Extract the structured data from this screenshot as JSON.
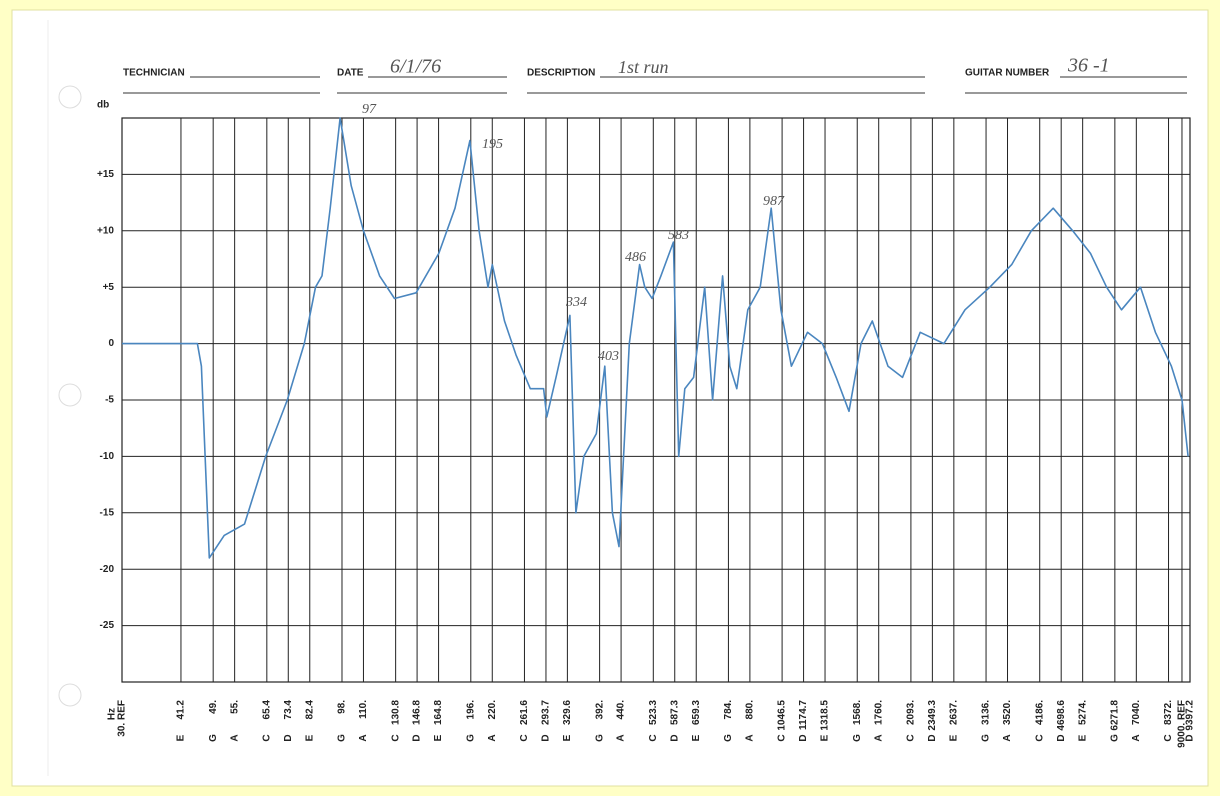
{
  "header": {
    "technician_label": "TECHNICIAN",
    "date_label": "DATE",
    "date_value": "6/1/76",
    "description_label": "DESCRIPTION",
    "description_value": "1st run",
    "guitar_number_label": "GUITAR NUMBER",
    "guitar_number_value": "36 -1"
  },
  "chart_data": {
    "type": "line",
    "y_label": "db",
    "x_label": "Hz",
    "xscale": "log",
    "grid": true,
    "xlim": [
      30,
      9397.2
    ],
    "ylim": [
      -30,
      20
    ],
    "yticks": [
      {
        "value": 15,
        "label": "+15"
      },
      {
        "value": 10,
        "label": "+10"
      },
      {
        "value": 5,
        "label": "+5"
      },
      0,
      -5,
      -10,
      -15,
      -20,
      -25
    ],
    "xticks": [
      {
        "value": 30,
        "label": "30. REF"
      },
      41.2,
      {
        "value": 49,
        "label": "49."
      },
      {
        "value": 55,
        "label": "55."
      },
      65.4,
      73.4,
      82.4,
      {
        "value": 98,
        "label": "98."
      },
      {
        "value": 110,
        "label": "110."
      },
      130.8,
      146.8,
      164.8,
      {
        "value": 196,
        "label": "196."
      },
      {
        "value": 220,
        "label": "220."
      },
      261.6,
      293.7,
      329.6,
      {
        "value": 392,
        "label": "392."
      },
      {
        "value": 440,
        "label": "440."
      },
      523.3,
      587.3,
      659.3,
      {
        "value": 784,
        "label": "784."
      },
      {
        "value": 880,
        "label": "880."
      },
      1046.5,
      1174.7,
      1318.5,
      {
        "value": 1568,
        "label": "1568."
      },
      {
        "value": 1760,
        "label": "1760."
      },
      {
        "value": 2093,
        "label": "2093."
      },
      2349.3,
      {
        "value": 2637,
        "label": "2637."
      },
      {
        "value": 3136,
        "label": "3136."
      },
      {
        "value": 3520,
        "label": "3520."
      },
      {
        "value": 4186,
        "label": "4186."
      },
      4698.6,
      {
        "value": 5274,
        "label": "5274."
      },
      6271.8,
      {
        "value": 7040,
        "label": "7040."
      },
      {
        "value": 8372,
        "label": "8372."
      },
      {
        "value": 9000,
        "label": "9000. REF"
      },
      9397.2
    ],
    "xtick_notes": [
      null,
      "E",
      "G",
      "A",
      "C",
      "D",
      "E",
      "G",
      "A",
      "C",
      "D",
      "E",
      "G",
      "A",
      "C",
      "D",
      "E",
      "G",
      "A",
      "C",
      "D",
      "E",
      "G",
      "A",
      "C",
      "D",
      "E",
      "G",
      "A",
      "C",
      "D",
      "E",
      "G",
      "A",
      "C",
      "D",
      "E",
      "G",
      "A",
      "C",
      null,
      "D"
    ],
    "annotations": [
      "97",
      "195",
      "334",
      "403",
      "486",
      "583",
      "987"
    ],
    "series": [
      {
        "color": "#4a86bf",
        "x": [
          30,
          40,
          45,
          46,
          48,
          52,
          58,
          65,
          73,
          80,
          85,
          88,
          92,
          97,
          103,
          110,
          120,
          130,
          146,
          165,
          180,
          195,
          205,
          215,
          220,
          235,
          250,
          270,
          290,
          295,
          310,
          334,
          345,
          360,
          385,
          403,
          420,
          435,
          460,
          486,
          500,
          520,
          545,
          583,
          600,
          620,
          650,
          690,
          720,
          760,
          790,
          820,
          870,
          930,
          987,
          1040,
          1100,
          1200,
          1300,
          1400,
          1500,
          1600,
          1700,
          1850,
          2000,
          2200,
          2500,
          2800,
          3200,
          3600,
          4000,
          4500,
          5000,
          5500,
          6000,
          6500,
          7200,
          7800,
          8500,
          9000,
          9300
        ],
        "y": [
          0,
          0,
          0,
          -2,
          -19,
          -17,
          -16,
          -10,
          -5,
          0,
          5,
          6,
          12,
          20,
          14,
          10,
          6,
          4,
          4.5,
          8,
          12,
          18,
          10,
          5,
          7,
          2,
          -1,
          -4,
          -4,
          -6.5,
          -3,
          2.5,
          -15,
          -10,
          -8,
          -2,
          -15,
          -18,
          0,
          7,
          5,
          4,
          6,
          9,
          -10,
          -4,
          -3,
          5,
          -5,
          6,
          -2,
          -4,
          3,
          5,
          12,
          3,
          -2,
          1,
          0,
          -3,
          -6,
          0,
          2,
          -2,
          -3,
          1,
          0,
          3,
          5,
          7,
          10,
          12,
          10,
          8,
          5,
          3,
          5,
          1,
          -2,
          -5,
          -10
        ]
      }
    ]
  }
}
